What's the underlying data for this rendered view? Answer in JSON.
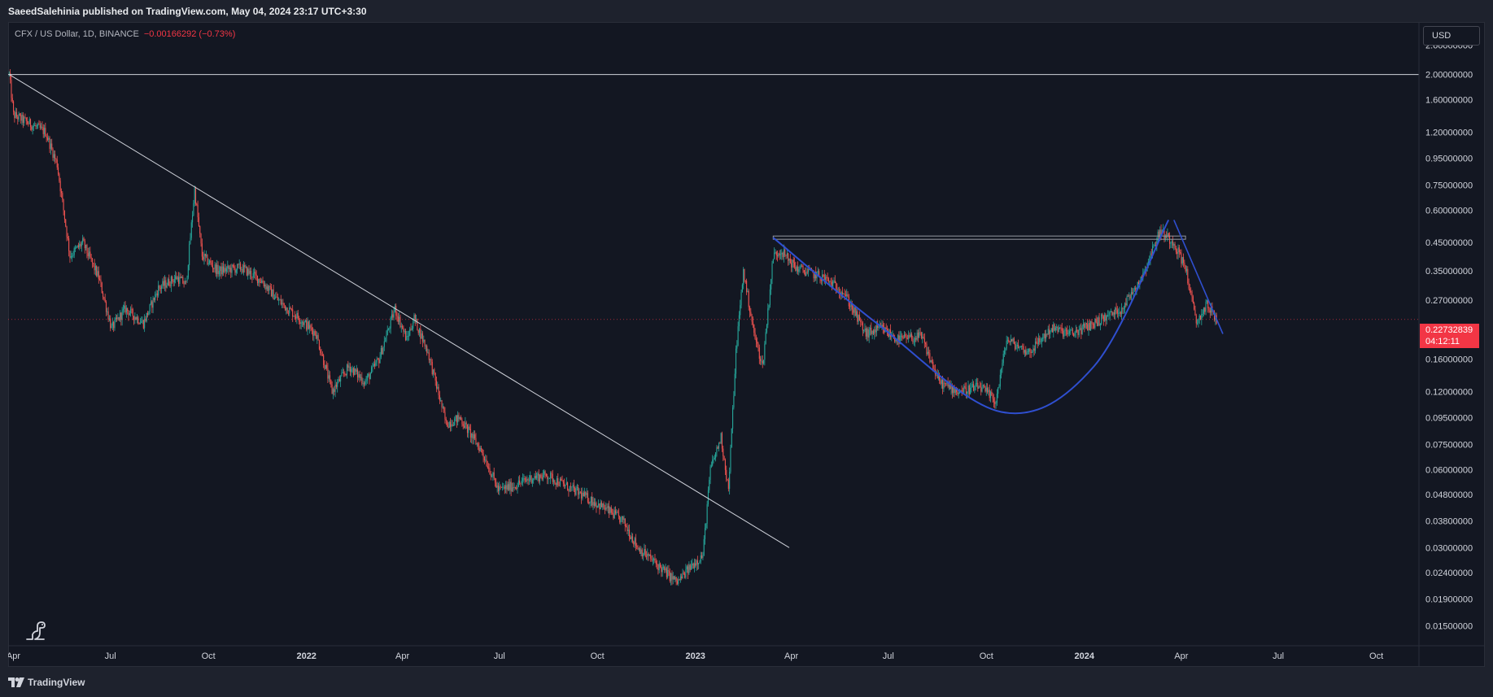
{
  "header": {
    "publish_note": "SaeedSalehinia published on TradingView.com, May 04, 2024 23:17 UTC+3:30"
  },
  "legend": {
    "symbol": "CFX / US Dollar, 1D, BINANCE",
    "change": "−0.00166292 (−0.73%)"
  },
  "price_scale": {
    "currency": "USD",
    "last_price": "0.22732839",
    "countdown": "04:12:11"
  },
  "footer": {
    "brand": "TradingView"
  },
  "icons": {
    "mascot": "dino-mascot-icon",
    "logo": "tradingview-logo-icon"
  },
  "colors": {
    "up": "#26a69a",
    "down": "#ef5350",
    "accent_red": "#f23645",
    "curve": "#2f4fd0",
    "trendline": "#d1d4dc"
  },
  "chart_data": {
    "type": "candlestick",
    "title": "CFX / US Dollar, 1D, BINANCE",
    "y_scale": "log",
    "y_ticks": [
      "2.60000000",
      "2.00000000",
      "1.60000000",
      "1.20000000",
      "0.95000000",
      "0.75000000",
      "0.60000000",
      "0.45000000",
      "0.35000000",
      "0.27000000",
      "0.16000000",
      "0.12000000",
      "0.09500000",
      "0.07500000",
      "0.06000000",
      "0.04800000",
      "0.03800000",
      "0.03000000",
      "0.02400000",
      "0.01900000",
      "0.01500000"
    ],
    "x_ticks": [
      "Apr",
      "Jul",
      "Oct",
      "2022",
      "Apr",
      "Jul",
      "Oct",
      "2023",
      "Apr",
      "Jul",
      "Oct",
      "2024",
      "Apr",
      "Jul",
      "Oct"
    ],
    "x_range": [
      "2021-03-27",
      "2024-11-10"
    ],
    "price_path": [
      [
        "2021-03-28",
        2.0
      ],
      [
        "2021-04-01",
        1.4
      ],
      [
        "2021-04-15",
        1.3
      ],
      [
        "2021-05-01",
        1.2
      ],
      [
        "2021-05-12",
        0.9
      ],
      [
        "2021-05-24",
        0.4
      ],
      [
        "2021-06-05",
        0.45
      ],
      [
        "2021-06-20",
        0.33
      ],
      [
        "2021-07-02",
        0.21
      ],
      [
        "2021-07-15",
        0.25
      ],
      [
        "2021-08-01",
        0.22
      ],
      [
        "2021-08-15",
        0.3
      ],
      [
        "2021-09-01",
        0.33
      ],
      [
        "2021-09-10",
        0.31
      ],
      [
        "2021-09-18",
        0.72
      ],
      [
        "2021-09-25",
        0.4
      ],
      [
        "2021-10-10",
        0.35
      ],
      [
        "2021-11-01",
        0.36
      ],
      [
        "2021-11-20",
        0.32
      ],
      [
        "2021-12-05",
        0.27
      ],
      [
        "2021-12-25",
        0.23
      ],
      [
        "2022-01-10",
        0.2
      ],
      [
        "2022-01-25",
        0.12
      ],
      [
        "2022-02-10",
        0.15
      ],
      [
        "2022-02-25",
        0.13
      ],
      [
        "2022-03-10",
        0.16
      ],
      [
        "2022-03-25",
        0.25
      ],
      [
        "2022-04-05",
        0.19
      ],
      [
        "2022-04-12",
        0.23
      ],
      [
        "2022-04-25",
        0.17
      ],
      [
        "2022-05-12",
        0.09
      ],
      [
        "2022-05-25",
        0.095
      ],
      [
        "2022-06-15",
        0.07
      ],
      [
        "2022-06-30",
        0.05
      ],
      [
        "2022-07-15",
        0.052
      ],
      [
        "2022-08-01",
        0.056
      ],
      [
        "2022-08-15",
        0.057
      ],
      [
        "2022-09-01",
        0.052
      ],
      [
        "2022-09-20",
        0.047
      ],
      [
        "2022-10-10",
        0.042
      ],
      [
        "2022-10-25",
        0.038
      ],
      [
        "2022-11-08",
        0.03
      ],
      [
        "2022-11-25",
        0.026
      ],
      [
        "2022-12-15",
        0.022
      ],
      [
        "2022-12-30",
        0.026
      ],
      [
        "2023-01-08",
        0.028
      ],
      [
        "2023-01-15",
        0.06
      ],
      [
        "2023-01-25",
        0.08
      ],
      [
        "2023-02-01",
        0.05
      ],
      [
        "2023-02-08",
        0.17
      ],
      [
        "2023-02-15",
        0.35
      ],
      [
        "2023-02-25",
        0.2
      ],
      [
        "2023-03-05",
        0.15
      ],
      [
        "2023-03-15",
        0.4
      ],
      [
        "2023-03-22",
        0.42
      ],
      [
        "2023-04-05",
        0.36
      ],
      [
        "2023-05-01",
        0.33
      ],
      [
        "2023-05-20",
        0.29
      ],
      [
        "2023-06-10",
        0.2
      ],
      [
        "2023-06-25",
        0.21
      ],
      [
        "2023-07-10",
        0.19
      ],
      [
        "2023-08-01",
        0.195
      ],
      [
        "2023-08-18",
        0.13
      ],
      [
        "2023-09-05",
        0.12
      ],
      [
        "2023-09-25",
        0.125
      ],
      [
        "2023-10-10",
        0.11
      ],
      [
        "2023-10-20",
        0.19
      ],
      [
        "2023-11-10",
        0.17
      ],
      [
        "2023-12-01",
        0.21
      ],
      [
        "2023-12-20",
        0.2
      ],
      [
        "2024-01-10",
        0.22
      ],
      [
        "2024-02-05",
        0.25
      ],
      [
        "2024-02-25",
        0.34
      ],
      [
        "2024-03-12",
        0.5
      ],
      [
        "2024-03-25",
        0.45
      ],
      [
        "2024-04-05",
        0.36
      ],
      [
        "2024-04-15",
        0.22
      ],
      [
        "2024-04-25",
        0.26
      ],
      [
        "2024-05-04",
        0.227
      ]
    ],
    "drawings": [
      {
        "kind": "horizontal-line",
        "y": 2.0
      },
      {
        "kind": "trendline",
        "from": [
          "2021-03-28",
          2.0
        ],
        "to": [
          "2023-03-30",
          0.03
        ]
      },
      {
        "kind": "horizontal-line-segment",
        "from": [
          "2023-03-15",
          0.47
        ],
        "to": [
          "2024-04-05",
          0.47
        ]
      },
      {
        "kind": "curve",
        "points": [
          [
            "2023-03-15",
            0.47
          ],
          [
            "2023-06-20",
            0.22
          ],
          [
            "2023-10-15",
            0.1
          ],
          [
            "2024-01-10",
            0.15
          ],
          [
            "2024-03-20",
            0.55
          ]
        ]
      },
      {
        "kind": "trendline",
        "from": [
          "2024-03-25",
          0.55
        ],
        "to": [
          "2024-05-10",
          0.2
        ]
      }
    ]
  }
}
